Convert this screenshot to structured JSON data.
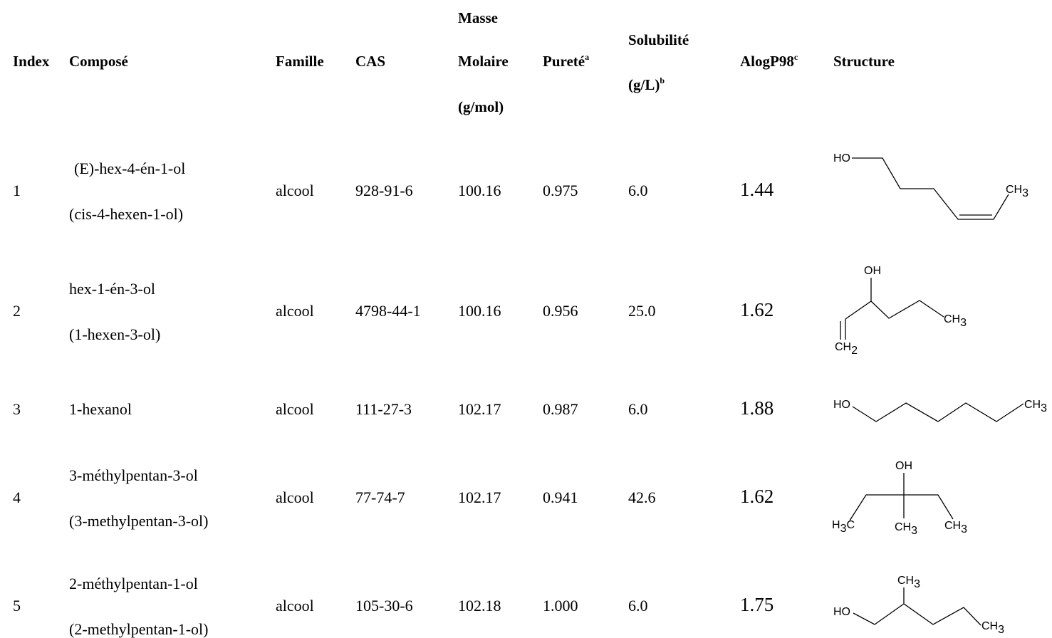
{
  "headers": {
    "index": "Index",
    "compose": "Composé",
    "famille": "Famille",
    "cas": "CAS",
    "masse_l1": "Masse",
    "masse_l2": "Molaire",
    "masse_l3": "(g/mol)",
    "purete": "Pureté",
    "purete_sup": "a",
    "solubilite_l1": "Solubilité",
    "solubilite_l2": "(g/L)",
    "solubilite_sup": "b",
    "alogp": "AlogP98",
    "alogp_sup": "c",
    "structure": "Structure"
  },
  "rows": [
    {
      "index": "1",
      "name": "(E)-hex-4-én-1-ol",
      "alt": "(cis-4-hexen-1-ol)",
      "famille": "alcool",
      "cas": "928-91-6",
      "masse": "100.16",
      "purete": "0.975",
      "solubilite": "6.0",
      "alogp": "1.44"
    },
    {
      "index": "2",
      "name": "hex-1-én-3-ol",
      "alt": "(1-hexen-3-ol)",
      "famille": "alcool",
      "cas": "4798-44-1",
      "masse": "100.16",
      "purete": "0.956",
      "solubilite": "25.0",
      "alogp": "1.62"
    },
    {
      "index": "3",
      "name": "1-hexanol",
      "alt": "",
      "famille": "alcool",
      "cas": "111-27-3",
      "masse": "102.17",
      "purete": "0.987",
      "solubilite": "6.0",
      "alogp": "1.88"
    },
    {
      "index": "4",
      "name": "3-méthylpentan-3-ol",
      "alt": "(3-methylpentan-3-ol)",
      "famille": "alcool",
      "cas": "77-74-7",
      "masse": "102.17",
      "purete": "0.941",
      "solubilite": "42.6",
      "alogp": "1.62"
    },
    {
      "index": "5",
      "name": "2-méthylpentan-1-ol",
      "alt": "(2-methylpentan-1-ol)",
      "famille": "alcool",
      "cas": "105-30-6",
      "masse": "102.18",
      "purete": "1.000",
      "solubilite": "6.0",
      "alogp": "1.75"
    }
  ],
  "structure_labels": {
    "ho": "HO",
    "oh": "OH",
    "ch": "CH",
    "h": "H",
    "c": "C",
    "sub3": "3",
    "sub2": "2"
  }
}
